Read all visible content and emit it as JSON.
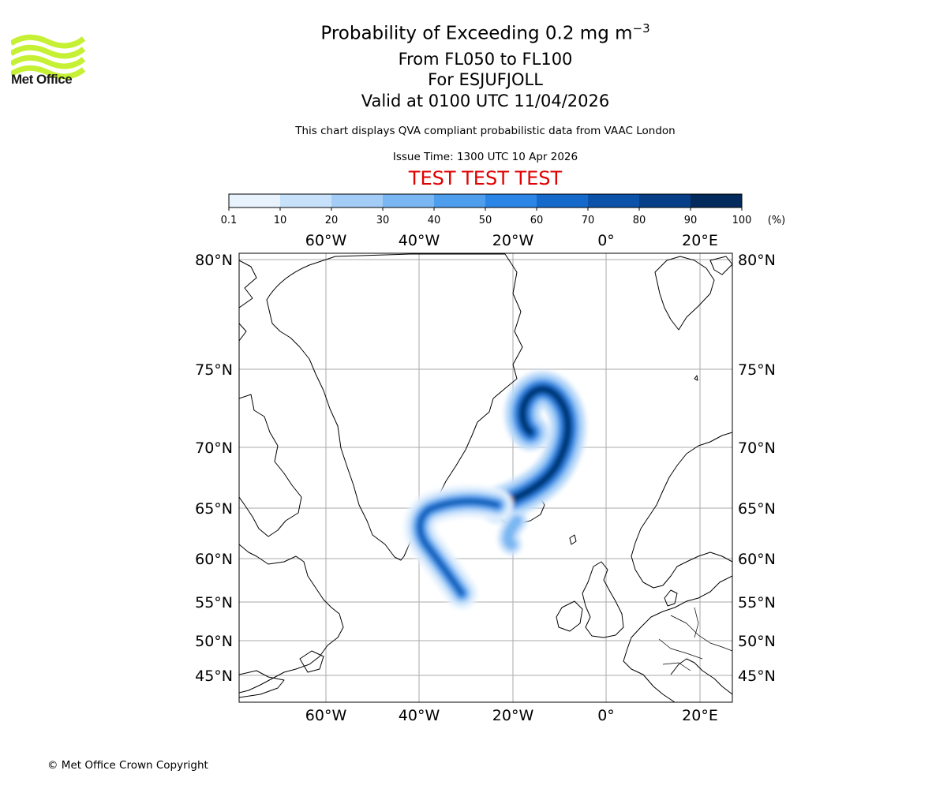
{
  "logo": {
    "name": "Met Office",
    "color": "#c6f033"
  },
  "header": {
    "title_main": "Probability of Exceeding 0.2 mg m",
    "title_exp": "−3",
    "level_range": "From FL050 to FL100",
    "volcano": "For ESJUFJOLL",
    "valid_time": "Valid at 0100 UTC 11/04/2026",
    "description": "This chart displays QVA compliant probabilistic data from VAAC London",
    "issue_time": "Issue Time: 1300 UTC 10 Apr 2026",
    "test_banner": "TEST TEST TEST"
  },
  "colorbar": {
    "ticks": [
      "0.1",
      "10",
      "20",
      "30",
      "40",
      "50",
      "60",
      "70",
      "80",
      "90",
      "100"
    ],
    "unit": "(%)",
    "colors": [
      "#e8f3fe",
      "#c7e1fb",
      "#a3cdf7",
      "#7ab7f2",
      "#4f9ded",
      "#2a85e6",
      "#1469cb",
      "#0b52a8",
      "#063f87",
      "#022a5c"
    ]
  },
  "map": {
    "lon_labels": [
      "60°W",
      "40°W",
      "20°W",
      "0°",
      "20°E"
    ],
    "lat_labels": [
      "80°N",
      "75°N",
      "70°N",
      "65°N",
      "60°N",
      "55°N",
      "50°N",
      "45°N"
    ],
    "gridline_color": "#aaaaaa"
  },
  "footer": {
    "copyright": "© Met Office Crown Copyright"
  }
}
